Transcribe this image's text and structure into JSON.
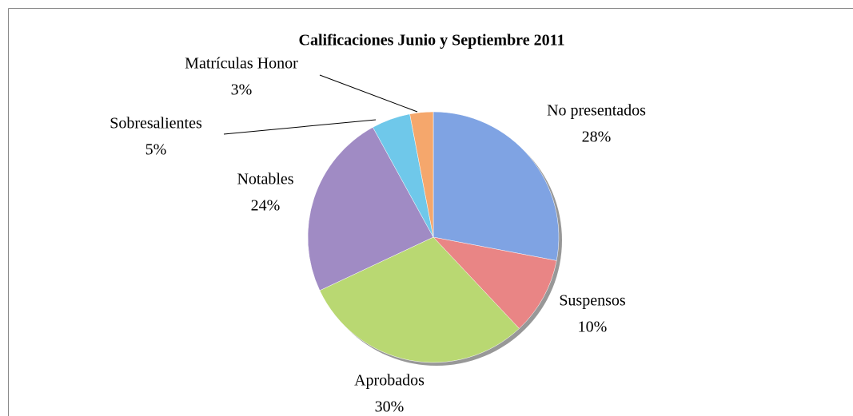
{
  "chart_data": {
    "type": "pie",
    "title": "Calificaciones Junio y Septiembre 2011",
    "categories": [
      "No presentados",
      "Suspensos",
      "Aprobados",
      "Notables",
      "Sobresalientes",
      "Matrículas Honor"
    ],
    "values": [
      28,
      10,
      30,
      24,
      5,
      3
    ],
    "value_labels": [
      "28%",
      "10%",
      "30%",
      "24%",
      "5%",
      "3%"
    ],
    "colors": [
      "#7fa3e3",
      "#e98585",
      "#b9d872",
      "#a08bc4",
      "#6fc8ea",
      "#f5a76c"
    ]
  }
}
